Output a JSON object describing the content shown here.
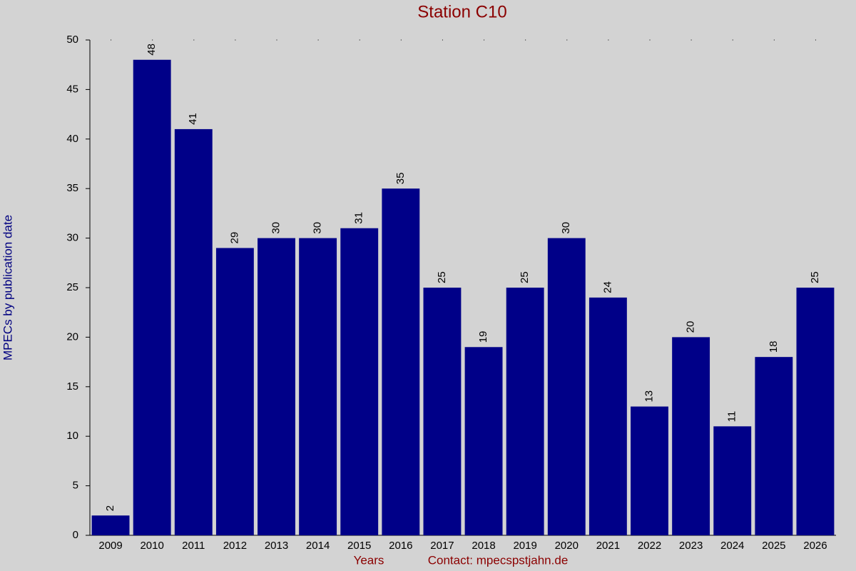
{
  "chart_data": {
    "type": "bar",
    "title": "Station C10",
    "x_label": "Years",
    "contact": "Contact: mpecspstjahn.de",
    "y_label": "MPECs by publication date",
    "categories": [
      "2009",
      "2010",
      "2011",
      "2012",
      "2013",
      "2014",
      "2015",
      "2016",
      "2017",
      "2018",
      "2019",
      "2020",
      "2021",
      "2022",
      "2023",
      "2024",
      "2025",
      "2026"
    ],
    "values": [
      2,
      48,
      41,
      29,
      30,
      30,
      31,
      35,
      25,
      19,
      25,
      30,
      24,
      13,
      20,
      11,
      18,
      25
    ],
    "color": "#000088",
    "ylim": [
      0,
      50
    ],
    "yticks": [
      0,
      5,
      10,
      15,
      20,
      25,
      30,
      35,
      40,
      45,
      50
    ],
    "grid": false,
    "value_labels_shown": true
  }
}
